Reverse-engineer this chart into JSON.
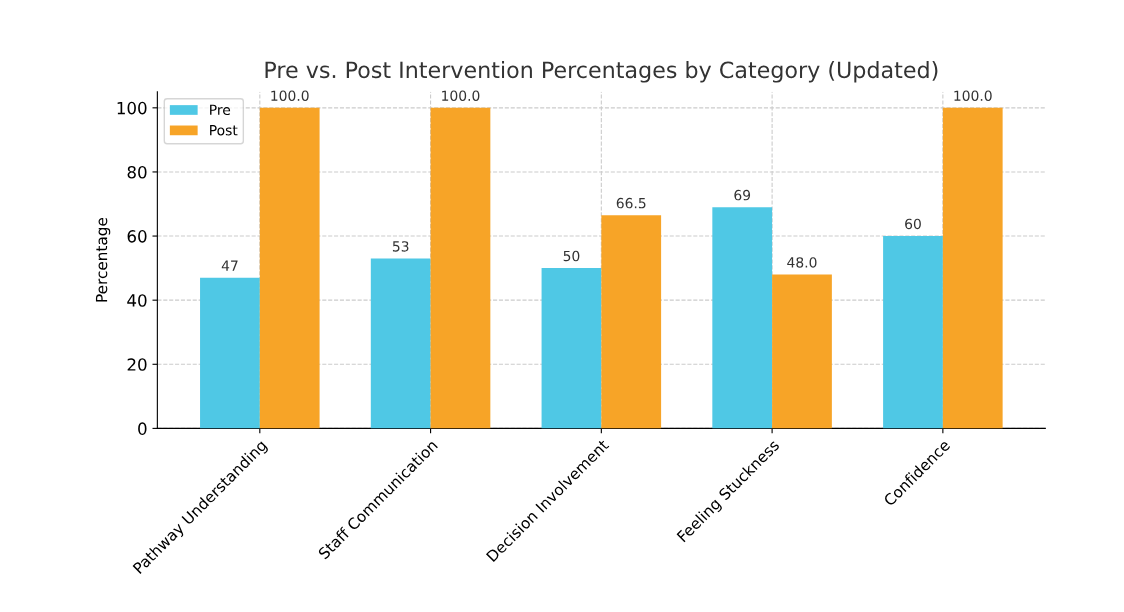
{
  "chart_data": {
    "type": "bar",
    "title": "Pre vs. Post Intervention Percentages by Category (Updated)",
    "ylabel": "Percentage",
    "categories": [
      "Pathway Understanding",
      "Staff Communication",
      "Decision Involvement",
      "Feeling Stuckness",
      "Confidence"
    ],
    "series": [
      {
        "name": "Pre",
        "color": "#4fc8e5",
        "values": [
          47,
          53,
          50,
          69,
          60
        ],
        "value_labels": [
          "47",
          "53",
          "50",
          "69",
          "60"
        ]
      },
      {
        "name": "Post",
        "color": "#f7a427",
        "values": [
          100,
          100,
          66.5,
          48,
          100
        ],
        "value_labels": [
          "100.0",
          "100.0",
          "66.5",
          "48.0",
          "100.0"
        ]
      }
    ],
    "ylim": [
      0,
      105
    ],
    "yticks": [
      0,
      20,
      40,
      60,
      80,
      100
    ],
    "grid": true,
    "legend": "top left"
  }
}
